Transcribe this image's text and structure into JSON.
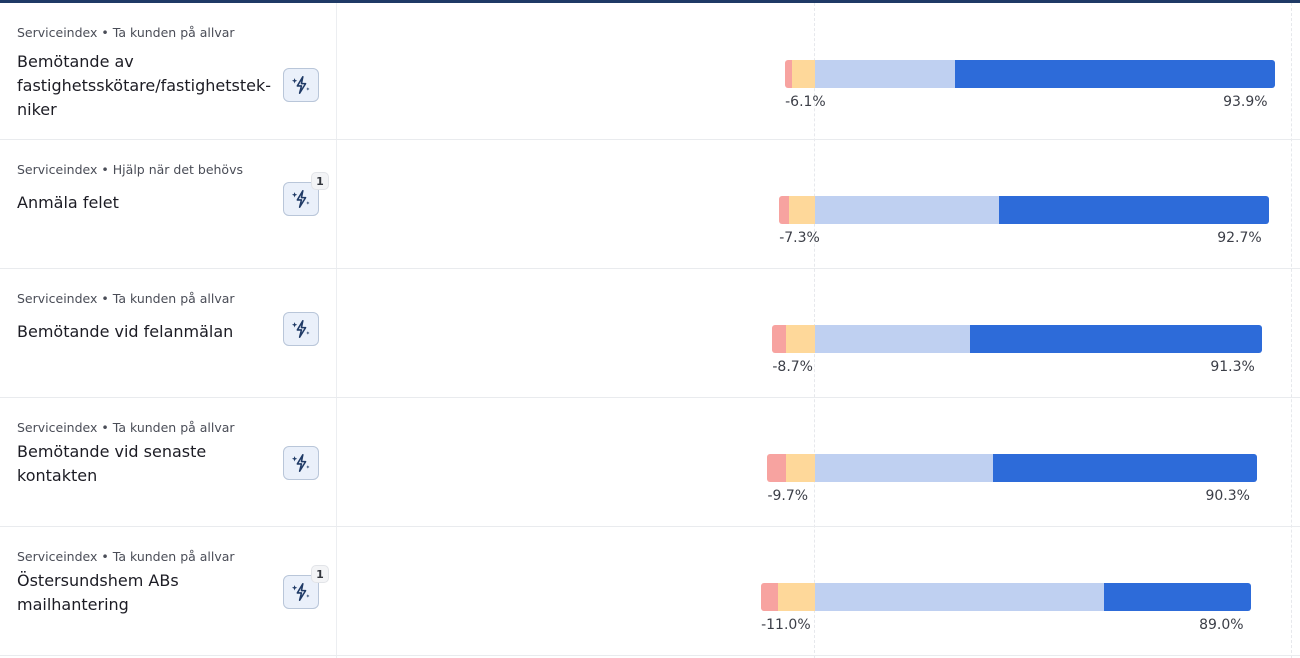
{
  "colors": {
    "very_negative": "#f7a3a0",
    "negative": "#fed89a",
    "positive": "#bfd0f1",
    "very_positive": "#2d6bd9"
  },
  "rows": [
    {
      "category": "Serviceindex",
      "subcategory": "Ta kunden på allvar",
      "title": "Bemötande av fastighetsskötare/fastighetstek-niker",
      "ai_icon": "sparkle-lightning-icon",
      "badge": "",
      "negative_label": "-6.1%",
      "positive_label": "93.9%",
      "segments": {
        "very_negative": 1.5,
        "negative": 4.6,
        "positive": 28.5,
        "very_positive": 65.4
      }
    },
    {
      "category": "Serviceindex",
      "subcategory": "Hjälp när det behövs",
      "title": "Anmäla felet",
      "ai_icon": "sparkle-lightning-icon",
      "badge": "1",
      "negative_label": "-7.3%",
      "positive_label": "92.7%",
      "segments": {
        "very_negative": 1.9,
        "negative": 5.4,
        "positive": 37.6,
        "very_positive": 55.1
      }
    },
    {
      "category": "Serviceindex",
      "subcategory": "Ta kunden på allvar",
      "title": "Bemötande vid felanmälan",
      "ai_icon": "sparkle-lightning-icon",
      "badge": "",
      "negative_label": "-8.7%",
      "positive_label": "91.3%",
      "segments": {
        "very_negative": 2.8,
        "negative": 5.9,
        "positive": 31.7,
        "very_positive": 59.6
      }
    },
    {
      "category": "Serviceindex",
      "subcategory": "Ta kunden på allvar",
      "title": "Bemötande vid senaste kontakten",
      "ai_icon": "sparkle-lightning-icon",
      "badge": "",
      "negative_label": "-9.7%",
      "positive_label": "90.3%",
      "segments": {
        "very_negative": 3.7,
        "negative": 6.0,
        "positive": 36.4,
        "very_positive": 53.9
      }
    },
    {
      "category": "Serviceindex",
      "subcategory": "Ta kunden på allvar",
      "title": "Östersundshem ABs mailhantering",
      "ai_icon": "sparkle-lightning-icon",
      "badge": "1",
      "negative_label": "-11.0%",
      "positive_label": "89.0%",
      "segments": {
        "very_negative": 3.5,
        "negative": 7.5,
        "positive": 59.0,
        "very_positive": 30.0
      }
    }
  ]
}
